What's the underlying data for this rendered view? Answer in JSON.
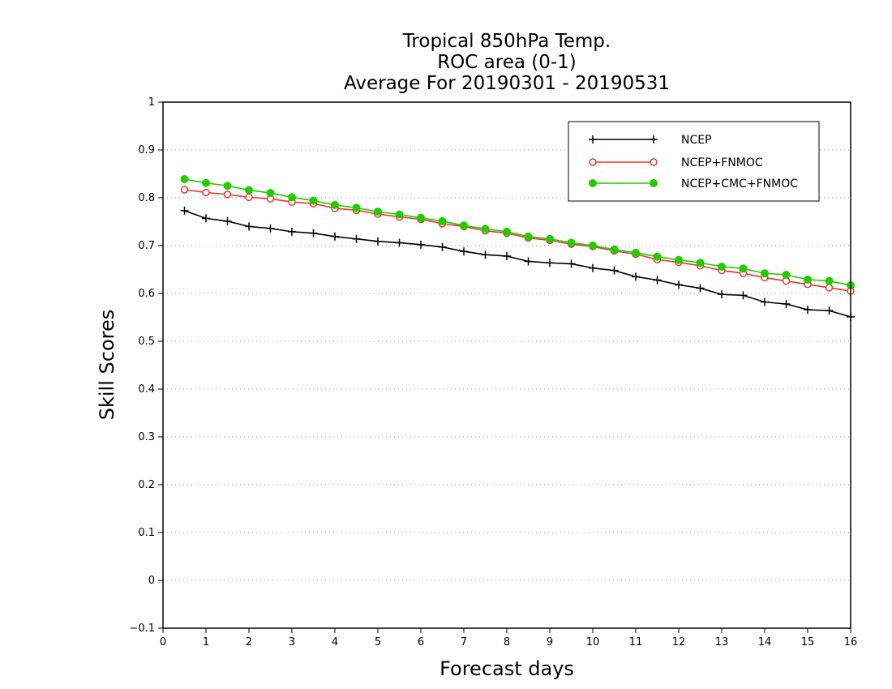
{
  "chart_data": {
    "type": "line",
    "title": [
      "Tropical 850hPa Temp.",
      "ROC area (0-1)",
      "Average For 20190301 - 20190531"
    ],
    "xlabel": "Forecast days",
    "ylabel": "Skill Scores",
    "xlim": [
      0,
      16
    ],
    "ylim": [
      -0.1,
      1
    ],
    "x_ticks": [
      "0",
      "1",
      "2",
      "3",
      "4",
      "5",
      "6",
      "7",
      "8",
      "9",
      "10",
      "11",
      "12",
      "13",
      "14",
      "15",
      "16"
    ],
    "y_ticks": [
      "−0.1",
      "0",
      "0.1",
      "0.2",
      "0.3",
      "0.4",
      "0.5",
      "0.6",
      "0.7",
      "0.8",
      "0.9",
      "1"
    ],
    "grid": "horizontal-dotted",
    "legend_position": "top-right",
    "x": [
      0.5,
      1,
      1.5,
      2,
      2.5,
      3,
      3.5,
      4,
      4.5,
      5,
      5.5,
      6,
      6.5,
      7,
      7.5,
      8,
      8.5,
      9,
      9.5,
      10,
      10.5,
      11,
      11.5,
      12,
      12.5,
      13,
      13.5,
      14,
      14.5,
      15,
      15.5,
      16
    ],
    "series": [
      {
        "name": "NCEP",
        "color": "#000000",
        "marker": "plus",
        "values": [
          0.773,
          0.757,
          0.751,
          0.74,
          0.736,
          0.729,
          0.726,
          0.719,
          0.714,
          0.709,
          0.706,
          0.702,
          0.697,
          0.688,
          0.681,
          0.678,
          0.667,
          0.664,
          0.662,
          0.653,
          0.648,
          0.635,
          0.628,
          0.618,
          0.611,
          0.598,
          0.596,
          0.582,
          0.578,
          0.566,
          0.564,
          0.551
        ]
      },
      {
        "name": "NCEP+FNMOC",
        "color": "#e8382e",
        "marker": "open-circle",
        "values": [
          0.817,
          0.811,
          0.807,
          0.801,
          0.798,
          0.791,
          0.788,
          0.778,
          0.774,
          0.766,
          0.76,
          0.755,
          0.746,
          0.74,
          0.731,
          0.726,
          0.716,
          0.711,
          0.703,
          0.698,
          0.689,
          0.682,
          0.671,
          0.665,
          0.658,
          0.648,
          0.642,
          0.633,
          0.626,
          0.619,
          0.612,
          0.605
        ]
      },
      {
        "name": "NCEP+CMC+FNMOC",
        "color": "#22cc00",
        "marker": "filled-circle",
        "values": [
          0.839,
          0.831,
          0.825,
          0.816,
          0.81,
          0.801,
          0.794,
          0.785,
          0.779,
          0.771,
          0.765,
          0.758,
          0.751,
          0.742,
          0.735,
          0.729,
          0.719,
          0.714,
          0.706,
          0.7,
          0.692,
          0.685,
          0.677,
          0.67,
          0.664,
          0.656,
          0.652,
          0.642,
          0.639,
          0.629,
          0.626,
          0.617
        ]
      }
    ]
  }
}
